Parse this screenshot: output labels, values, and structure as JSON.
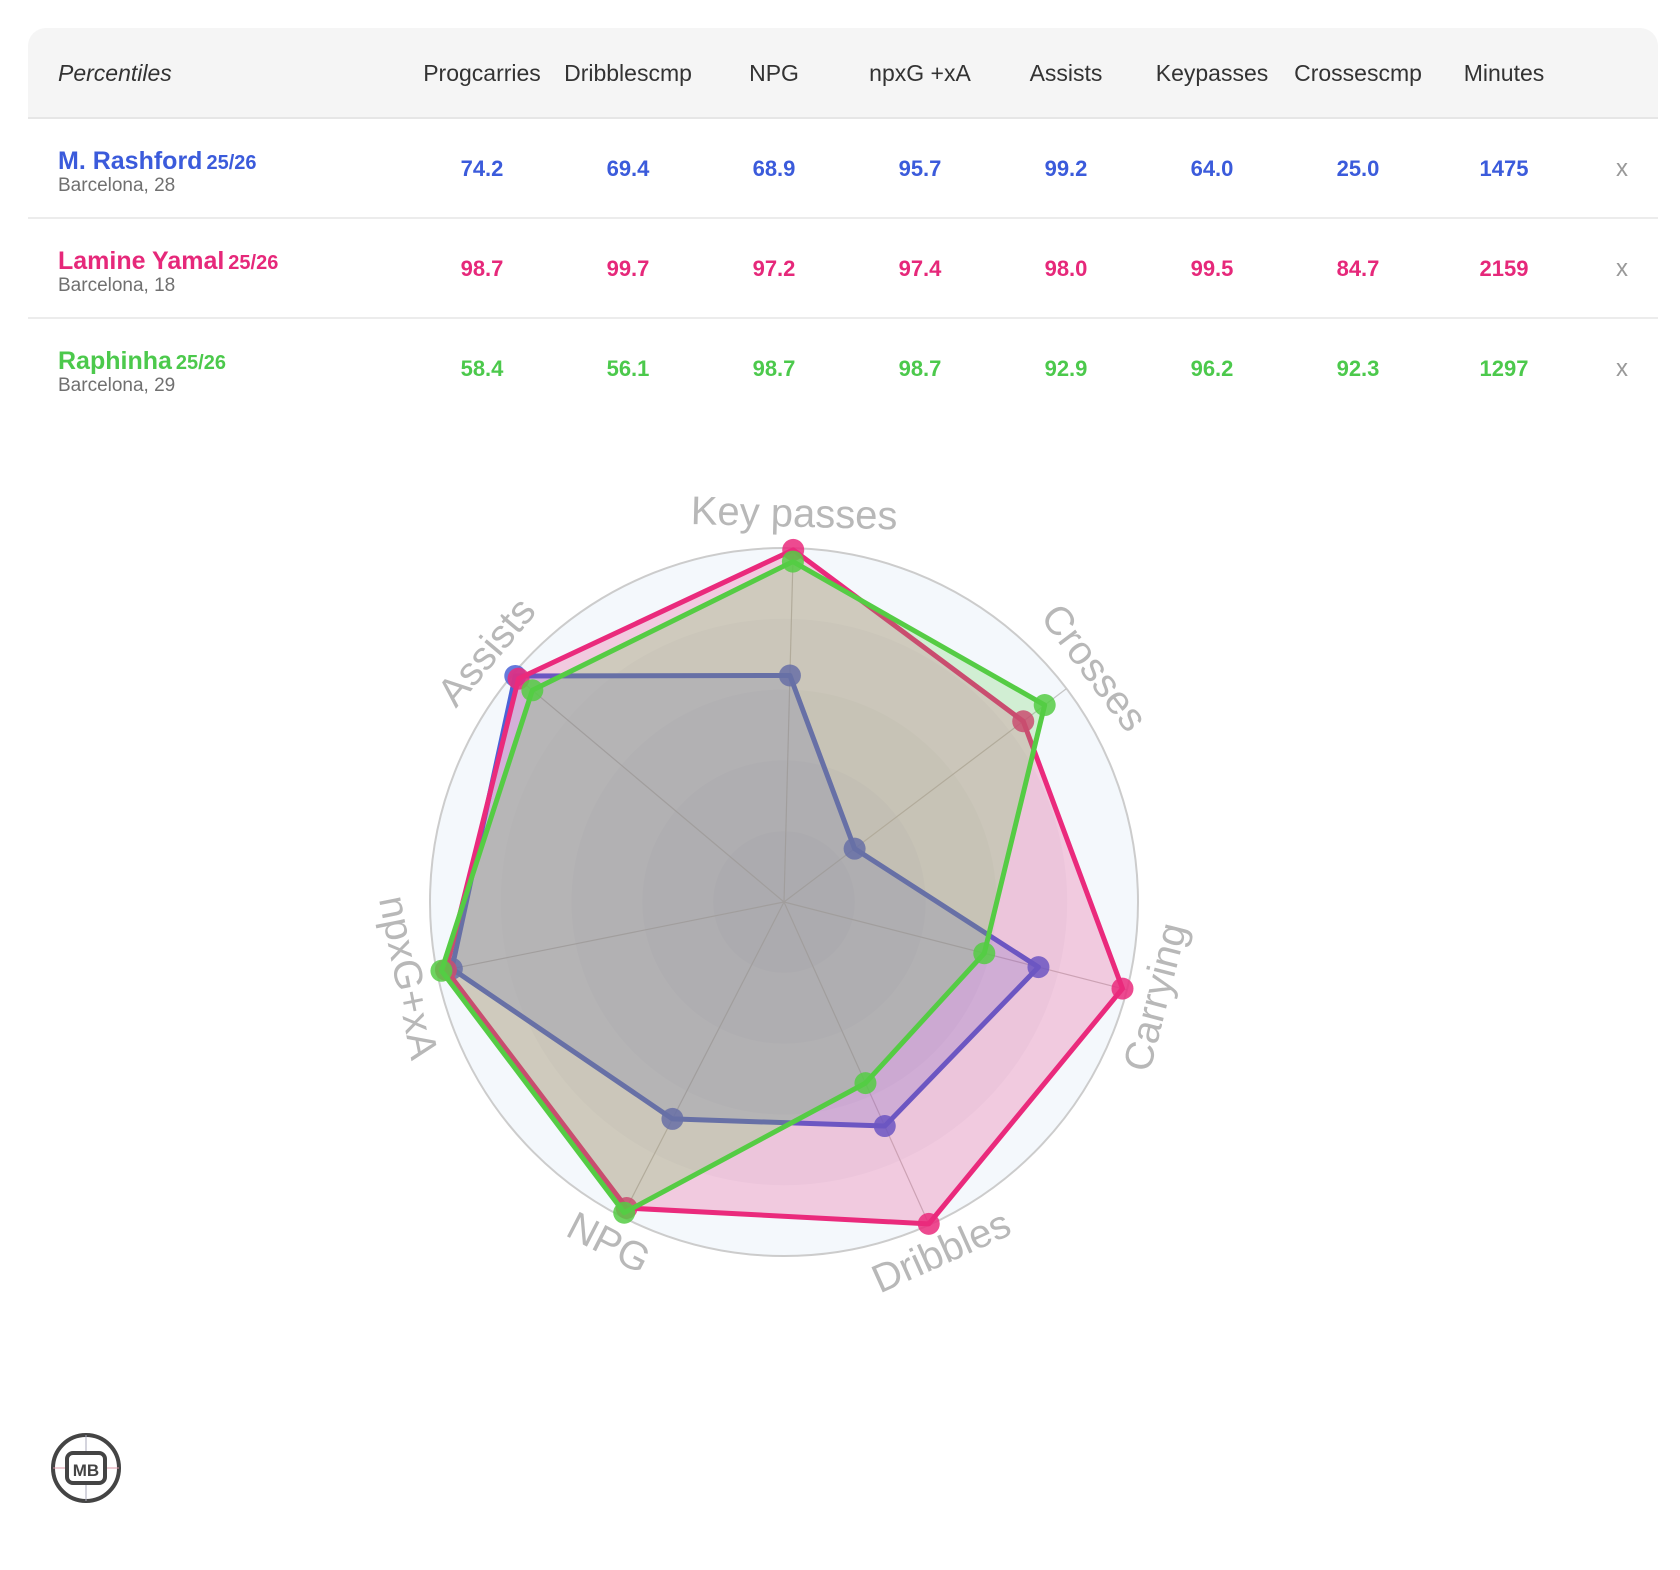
{
  "table": {
    "header_label": "Percentiles",
    "columns": [
      "Prog carries",
      "Dribbles cmp",
      "NPG",
      "npxG +xA",
      "Assists",
      "Key passes",
      "Crosses cmp",
      "Minutes"
    ],
    "column_lines": [
      [
        "Prog",
        "carries"
      ],
      [
        "Dribbles",
        "cmp"
      ],
      [
        "NPG"
      ],
      [
        "npxG +xA"
      ],
      [
        "Assists"
      ],
      [
        "Key",
        "passes"
      ],
      [
        "Crosses",
        "cmp"
      ],
      [
        "Minutes"
      ]
    ],
    "remove_label": "x",
    "players": [
      {
        "name": "M. Rashford",
        "season": "25/26",
        "club_age": "Barcelona, 28",
        "color": "#3b5bdb",
        "values": [
          "74.2",
          "69.4",
          "68.9",
          "95.7",
          "99.2",
          "64.0",
          "25.0",
          "1475"
        ]
      },
      {
        "name": "Lamine Yamal",
        "season": "25/26",
        "club_age": "Barcelona, 18",
        "color": "#e6287a",
        "values": [
          "98.7",
          "99.7",
          "97.2",
          "97.4",
          "98.0",
          "99.5",
          "84.7",
          "2159"
        ]
      },
      {
        "name": "Raphinha",
        "season": "25/26",
        "club_age": "Barcelona, 29",
        "color": "#4cc94c",
        "values": [
          "58.4",
          "56.1",
          "98.7",
          "98.7",
          "92.9",
          "96.2",
          "92.3",
          "1297"
        ]
      }
    ]
  },
  "chart_data": {
    "type": "radar",
    "axes": [
      "Key passes",
      "Crosses",
      "Carrying",
      "Dribbles",
      "NPG",
      "npxG+xA",
      "Assists"
    ],
    "range": [
      0,
      100
    ],
    "series": [
      {
        "name": "M. Rashford",
        "color": "#4a63d6",
        "values": [
          64.0,
          25.0,
          74.2,
          69.4,
          68.9,
          95.7,
          99.2
        ]
      },
      {
        "name": "Lamine Yamal",
        "color": "#ea2a7c",
        "values": [
          99.5,
          84.7,
          98.7,
          99.7,
          97.2,
          97.4,
          98.0
        ]
      },
      {
        "name": "Raphinha",
        "color": "#55cc44",
        "values": [
          96.2,
          92.3,
          58.4,
          56.1,
          98.7,
          98.7,
          92.9
        ]
      }
    ]
  },
  "logo": {
    "text": "MB"
  }
}
